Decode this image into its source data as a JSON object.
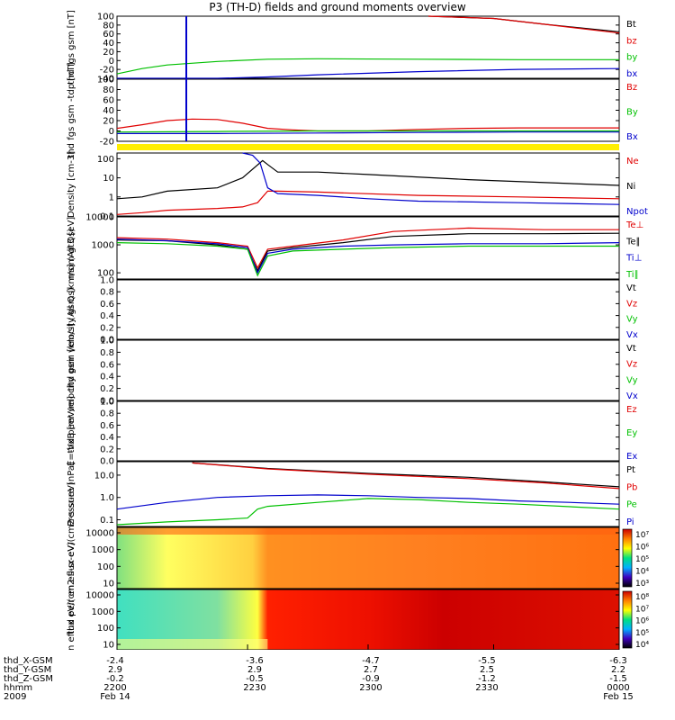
{
  "title": "P3 (TH-D) fields and ground moments overview",
  "colors": {
    "black": "#000000",
    "red": "#e00000",
    "green": "#00c000",
    "blue": "#0000cc",
    "yellow": "#ffee00"
  },
  "chart_data": [
    {
      "type": "line",
      "panel": "fgs-gsm",
      "ylabel": "thd fgs gsm [nT]",
      "yticks": [
        "-40",
        "-20",
        "0",
        "20",
        "40",
        "60",
        "80",
        "100"
      ],
      "ylim": [
        -40,
        100
      ],
      "legend": [
        "Bt",
        "bz",
        "by",
        "bx"
      ],
      "legend_colors": [
        "black",
        "red",
        "green",
        "blue"
      ],
      "series": [
        {
          "name": "Bt",
          "color": "black",
          "x": [
            0.62,
            0.75,
            0.85,
            1.0
          ],
          "y": [
            100,
            95,
            82,
            65
          ]
        },
        {
          "name": "bz",
          "color": "red",
          "x": [
            0.62,
            0.75,
            0.85,
            1.0
          ],
          "y": [
            100,
            95,
            82,
            62
          ]
        },
        {
          "name": "by",
          "color": "green",
          "x": [
            0.0,
            0.05,
            0.1,
            0.2,
            0.3,
            0.4,
            0.6,
            0.8,
            1.0
          ],
          "y": [
            -30,
            -18,
            -10,
            -2,
            3,
            4,
            3,
            2,
            2
          ]
        },
        {
          "name": "bx",
          "color": "blue",
          "x": [
            0.0,
            0.2,
            0.3,
            0.4,
            0.6,
            0.8,
            1.0
          ],
          "y": [
            -40,
            -40,
            -37,
            -32,
            -25,
            -20,
            -18
          ]
        }
      ]
    },
    {
      "type": "line",
      "panel": "fgs-gsm-tdp",
      "ylabel": "thd fgs gsm -tdp [nT]",
      "yticks": [
        "-20",
        "0",
        "20",
        "40",
        "60",
        "80",
        "100"
      ],
      "ylim": [
        -20,
        100
      ],
      "legend": [
        "Bz",
        "By",
        "Bx"
      ],
      "legend_colors": [
        "red",
        "green",
        "blue"
      ],
      "series": [
        {
          "name": "Bz",
          "color": "red",
          "x": [
            0.0,
            0.05,
            0.1,
            0.15,
            0.2,
            0.25,
            0.3,
            0.35,
            0.4,
            0.5,
            0.6,
            0.7,
            0.8,
            1.0
          ],
          "y": [
            5,
            12,
            20,
            23,
            22,
            15,
            5,
            2,
            0,
            0,
            3,
            5,
            6,
            6
          ]
        },
        {
          "name": "By",
          "color": "green",
          "x": [
            0.0,
            0.2,
            0.4,
            0.6,
            0.8,
            1.0
          ],
          "y": [
            -2,
            -1,
            0,
            0,
            0,
            0
          ]
        },
        {
          "name": "Bx",
          "color": "blue",
          "x": [
            0.0,
            0.2,
            0.4,
            0.6,
            0.8,
            1.0
          ],
          "y": [
            -5,
            -5,
            -4,
            -3,
            -2,
            -2
          ]
        }
      ]
    },
    {
      "type": "line",
      "panel": "density",
      "ylabel": "Density [cm-3]",
      "yticks": [
        "0.1",
        "1",
        "10",
        "100"
      ],
      "ylim": [
        0.1,
        200
      ],
      "scale": "log",
      "legend": [
        "Ne",
        "Ni",
        "Npot"
      ],
      "legend_colors": [
        "red",
        "black",
        "blue"
      ],
      "series": [
        {
          "name": "Ni",
          "color": "black",
          "x": [
            0.0,
            0.05,
            0.1,
            0.2,
            0.25,
            0.29,
            0.3,
            0.32,
            0.4,
            0.5,
            0.7,
            1.0
          ],
          "y": [
            0.8,
            1.0,
            2,
            3,
            10,
            80,
            50,
            20,
            20,
            15,
            8,
            4
          ]
        },
        {
          "name": "Ne",
          "color": "red",
          "x": [
            0.0,
            0.05,
            0.1,
            0.2,
            0.25,
            0.28,
            0.3,
            0.32,
            0.4,
            0.6,
            0.8,
            1.0
          ],
          "y": [
            0.12,
            0.15,
            0.2,
            0.25,
            0.3,
            0.5,
            2,
            2,
            1.8,
            1.2,
            1.0,
            0.8
          ]
        },
        {
          "name": "Npot",
          "color": "blue",
          "x": [
            0.25,
            0.27,
            0.285,
            0.3,
            0.32,
            0.4,
            0.5,
            0.6,
            0.8,
            1.0
          ],
          "y": [
            200,
            150,
            60,
            3,
            1.5,
            1.2,
            0.8,
            0.6,
            0.5,
            0.4
          ]
        }
      ]
    },
    {
      "type": "line",
      "panel": "mom-temp",
      "ylabel": "mom gt3 [eV]",
      "yticks": [
        "100",
        "1000",
        "10000"
      ],
      "ylim": [
        60,
        10000
      ],
      "scale": "log",
      "legend": [
        "Te⊥",
        "Te∥",
        "Ti⊥",
        "Ti∥"
      ],
      "legend_colors": [
        "red",
        "black",
        "blue",
        "green"
      ],
      "series": [
        {
          "name": "Te⊥",
          "color": "red",
          "x": [
            0.0,
            0.1,
            0.2,
            0.26,
            0.28,
            0.3,
            0.35,
            0.45,
            0.55,
            0.7,
            0.85,
            1.0
          ],
          "y": [
            1800,
            1600,
            1200,
            900,
            150,
            700,
            900,
            1500,
            3000,
            4000,
            3500,
            3500
          ]
        },
        {
          "name": "Te∥",
          "color": "black",
          "x": [
            0.0,
            0.1,
            0.2,
            0.26,
            0.28,
            0.3,
            0.35,
            0.45,
            0.55,
            0.7,
            0.85,
            1.0
          ],
          "y": [
            1500,
            1400,
            1000,
            700,
            120,
            600,
            800,
            1200,
            2000,
            2500,
            2500,
            2600
          ]
        },
        {
          "name": "Ti⊥",
          "color": "blue",
          "x": [
            0.0,
            0.1,
            0.2,
            0.26,
            0.28,
            0.3,
            0.35,
            0.45,
            0.55,
            0.7,
            0.85,
            1.0
          ],
          "y": [
            1600,
            1400,
            1100,
            800,
            100,
            500,
            700,
            900,
            1000,
            1100,
            1100,
            1200
          ]
        },
        {
          "name": "Ti∥",
          "color": "green",
          "x": [
            0.0,
            0.1,
            0.2,
            0.26,
            0.28,
            0.3,
            0.35,
            0.45,
            0.55,
            0.7,
            0.85,
            1.0
          ],
          "y": [
            1200,
            1100,
            900,
            700,
            80,
            400,
            600,
            700,
            800,
            900,
            900,
            900
          ]
        }
      ]
    },
    {
      "type": "line",
      "panel": "peir-velocity",
      "ylabel": "thd peir velocity gsm [km/s] (All Qs)",
      "yticks": [
        "0.0",
        "0.2",
        "0.4",
        "0.6",
        "0.8",
        "1.0"
      ],
      "ylim": [
        0,
        1
      ],
      "legend": [
        "Vt",
        "Vz",
        "Vy",
        "Vx"
      ],
      "legend_colors": [
        "black",
        "red",
        "green",
        "blue"
      ],
      "series": []
    },
    {
      "type": "line",
      "panel": "peer-velocity",
      "ylabel": "thd peer velocity gsm [km/s] (All Qs)",
      "yticks": [
        "0.0",
        "0.2",
        "0.4",
        "0.6",
        "0.8",
        "1.0"
      ],
      "ylim": [
        0,
        1
      ],
      "legend": [
        "Vt",
        "Vz",
        "Vy",
        "Vx"
      ],
      "legend_colors": [
        "black",
        "red",
        "green",
        "blue"
      ],
      "series": []
    },
    {
      "type": "line",
      "panel": "efield",
      "ylabel": "E=-VxB [mV/m]",
      "yticks": [
        "0.0",
        "0.2",
        "0.4",
        "0.6",
        "0.8",
        "1.0"
      ],
      "ylim": [
        0,
        1
      ],
      "legend": [
        "Ez",
        "Ey",
        "Ex"
      ],
      "legend_colors": [
        "red",
        "green",
        "blue"
      ],
      "series": []
    },
    {
      "type": "line",
      "panel": "pressure",
      "ylabel": "Pressure [nPa]",
      "yticks": [
        "0.1",
        "1.0",
        "10.0"
      ],
      "ylim": [
        0.05,
        40
      ],
      "scale": "log",
      "legend": [
        "Pt",
        "Pb",
        "Pe",
        "Pi"
      ],
      "legend_colors": [
        "black",
        "red",
        "green",
        "blue"
      ],
      "series": [
        {
          "name": "Pt",
          "color": "black",
          "x": [
            0.15,
            0.3,
            0.5,
            0.7,
            0.85,
            1.0
          ],
          "y": [
            35,
            20,
            12,
            8,
            5,
            3
          ]
        },
        {
          "name": "Pb",
          "color": "red",
          "x": [
            0.15,
            0.3,
            0.5,
            0.7,
            0.85,
            1.0
          ],
          "y": [
            35,
            19,
            11,
            7,
            4.5,
            2.5
          ]
        },
        {
          "name": "Pi",
          "color": "blue",
          "x": [
            0.0,
            0.1,
            0.2,
            0.3,
            0.4,
            0.5,
            0.6,
            0.7,
            0.8,
            0.9,
            1.0
          ],
          "y": [
            0.3,
            0.6,
            1.0,
            1.2,
            1.3,
            1.2,
            1.0,
            0.9,
            0.7,
            0.6,
            0.5
          ]
        },
        {
          "name": "Pe",
          "color": "green",
          "x": [
            0.0,
            0.1,
            0.2,
            0.26,
            0.28,
            0.3,
            0.4,
            0.5,
            0.6,
            0.7,
            0.8,
            1.0
          ],
          "y": [
            0.06,
            0.08,
            0.1,
            0.12,
            0.3,
            0.4,
            0.6,
            0.9,
            0.8,
            0.6,
            0.5,
            0.3
          ]
        }
      ]
    },
    {
      "type": "heatmap",
      "panel": "peir-eflux",
      "ylabel": "thd peir en eflux eV/(cm2-s-sr-eV)",
      "yticks": [
        "10",
        "100",
        "1000",
        "10000"
      ],
      "colorbar_ticks": [
        "10⁷",
        "10⁶",
        "10⁵",
        "10⁴",
        "10³"
      ]
    },
    {
      "type": "heatmap",
      "panel": "peer-eflux",
      "ylabel": "thd peer en eflux eV/(cm2-s-sr-eV)",
      "yticks": [
        "10",
        "100",
        "1000",
        "10000"
      ],
      "colorbar_ticks": [
        "10⁸",
        "10⁷",
        "10⁶",
        "10⁵",
        "10⁴"
      ]
    }
  ],
  "footer": {
    "rows": [
      {
        "label": "thd_X-GSM",
        "values": [
          "-2.4",
          "-3.6",
          "-4.7",
          "-5.5",
          "-6.3"
        ]
      },
      {
        "label": "thd_Y-GSM",
        "values": [
          "2.9",
          "2.9",
          "2.7",
          "2.5",
          "2.2"
        ]
      },
      {
        "label": "thd_Z-GSM",
        "values": [
          "-0.2",
          "-0.5",
          "-0.9",
          "-1.2",
          "-1.5"
        ]
      },
      {
        "label": "hhmm",
        "values": [
          "2200",
          "2230",
          "2300",
          "2330",
          "0000"
        ]
      },
      {
        "label": "2009",
        "values": [
          "Feb 14",
          "",
          "",
          "",
          "Feb 15"
        ]
      }
    ]
  }
}
